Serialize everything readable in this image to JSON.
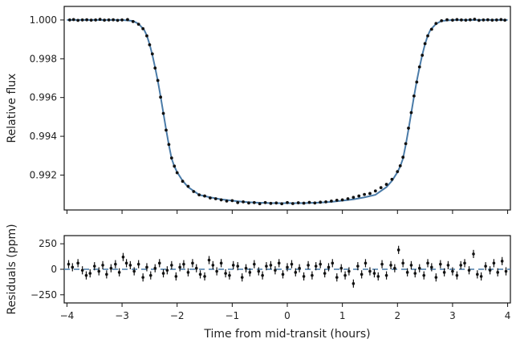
{
  "colors": {
    "model": "#4a7ba8",
    "points": "#111111",
    "axes": "#111111",
    "zero_line": "#4a7ba8"
  },
  "chart_data": [
    {
      "type": "line",
      "panel": "light-curve",
      "ylabel": "Relative flux",
      "xlim": [
        -4.05,
        4.05
      ],
      "ylim": [
        0.9902,
        1.0007
      ],
      "yticks": [
        0.992,
        0.994,
        0.996,
        0.998,
        1.0
      ],
      "ytick_labels": [
        "0.992",
        "0.994",
        "0.996",
        "0.998",
        "1.000"
      ],
      "xticks": [
        -4,
        -3,
        -2,
        -1,
        0,
        1,
        2,
        3,
        4
      ],
      "grid": false,
      "series": [
        {
          "kind": "model-line",
          "x": [
            -4.0,
            -3.0,
            -2.8,
            -2.7,
            -2.6,
            -2.55,
            -2.5,
            -2.45,
            -2.4,
            -2.35,
            -2.3,
            -2.25,
            -2.2,
            -2.15,
            -2.1,
            -2.05,
            -2.0,
            -1.9,
            -1.8,
            -1.6,
            -1.4,
            -1.2,
            -1.0,
            -0.8,
            -0.6,
            -0.4,
            -0.2,
            0.0,
            0.2,
            0.4,
            0.6,
            0.8,
            1.0,
            1.2,
            1.4,
            1.6,
            1.8,
            1.9,
            2.0,
            2.05,
            2.1,
            2.15,
            2.2,
            2.25,
            2.3,
            2.35,
            2.4,
            2.45,
            2.5,
            2.55,
            2.6,
            2.7,
            2.8,
            3.0,
            4.0
          ],
          "y": [
            1.0,
            1.0,
            0.99995,
            0.9998,
            0.9995,
            0.9992,
            0.99875,
            0.9982,
            0.99755,
            0.99685,
            0.99605,
            0.9952,
            0.99435,
            0.99355,
            0.99285,
            0.99245,
            0.99215,
            0.9917,
            0.99138,
            0.99098,
            0.99085,
            0.99075,
            0.99068,
            0.99062,
            0.99058,
            0.99056,
            0.99055,
            0.99055,
            0.99055,
            0.99056,
            0.99058,
            0.99062,
            0.99068,
            0.99075,
            0.99085,
            0.99098,
            0.99138,
            0.9917,
            0.99215,
            0.99245,
            0.99285,
            0.99355,
            0.99435,
            0.9952,
            0.99605,
            0.99685,
            0.99755,
            0.9982,
            0.99875,
            0.9992,
            0.9995,
            0.9998,
            0.99995,
            1.0,
            1.0
          ]
        },
        {
          "kind": "data-points",
          "x": [
            -3.95,
            -3.88,
            -3.8,
            -3.72,
            -3.64,
            -3.56,
            -3.48,
            -3.4,
            -3.32,
            -3.24,
            -3.16,
            -3.08,
            -3.0,
            -2.9,
            -2.8,
            -2.7,
            -2.62,
            -2.55,
            -2.5,
            -2.45,
            -2.4,
            -2.35,
            -2.3,
            -2.25,
            -2.2,
            -2.15,
            -2.1,
            -2.05,
            -2.0,
            -1.9,
            -1.8,
            -1.7,
            -1.6,
            -1.5,
            -1.4,
            -1.3,
            -1.2,
            -1.1,
            -1.0,
            -0.9,
            -0.8,
            -0.7,
            -0.6,
            -0.5,
            -0.4,
            -0.3,
            -0.2,
            -0.1,
            0.0,
            0.1,
            0.2,
            0.3,
            0.4,
            0.5,
            0.6,
            0.7,
            0.8,
            0.9,
            1.0,
            1.1,
            1.2,
            1.3,
            1.4,
            1.5,
            1.6,
            1.7,
            1.8,
            1.9,
            2.0,
            2.05,
            2.1,
            2.15,
            2.2,
            2.25,
            2.3,
            2.35,
            2.4,
            2.45,
            2.5,
            2.55,
            2.62,
            2.7,
            2.8,
            2.9,
            3.0,
            3.08,
            3.16,
            3.24,
            3.32,
            3.4,
            3.48,
            3.56,
            3.64,
            3.72,
            3.8,
            3.88,
            3.95
          ],
          "y": [
            1.0,
            1.00002,
            0.99998,
            1.0,
            1.00001,
            0.99999,
            1.0,
            1.00003,
            0.99999,
            1.0,
            1.00001,
            0.99998,
            1.0,
            1.00002,
            0.99992,
            0.99978,
            0.99955,
            0.99918,
            0.99872,
            0.99825,
            0.99752,
            0.99688,
            0.99602,
            0.99518,
            0.99432,
            0.99358,
            0.99288,
            0.99246,
            0.99212,
            0.99168,
            0.99142,
            0.99115,
            0.99098,
            0.99092,
            0.99082,
            0.99078,
            0.99072,
            0.99066,
            0.99068,
            0.99058,
            0.99062,
            0.99056,
            0.99058,
            0.99052,
            0.99058,
            0.99054,
            0.99056,
            0.99052,
            0.99058,
            0.99053,
            0.99057,
            0.99055,
            0.99059,
            0.99056,
            0.9906,
            0.99062,
            0.99066,
            0.9907,
            0.99072,
            0.99078,
            0.99085,
            0.99092,
            0.991,
            0.99105,
            0.99118,
            0.99135,
            0.99152,
            0.99178,
            0.99218,
            0.99248,
            0.99292,
            0.99362,
            0.99442,
            0.99522,
            0.99608,
            0.9968,
            0.99758,
            0.99818,
            0.99878,
            0.99918,
            0.99952,
            0.99982,
            0.99996,
            1.00001,
            0.99999,
            1.00002,
            1.0,
            0.99999,
            1.00001,
            1.00004,
            0.99998,
            1.0,
            1.00001,
            0.99999,
            1.0,
            1.00002,
            0.99999
          ]
        }
      ]
    },
    {
      "type": "scatter",
      "panel": "residuals",
      "xlabel": "Time from mid-transit (hours)",
      "ylabel": "Residuals (ppm)",
      "xlim": [
        -4.05,
        4.05
      ],
      "ylim": [
        -330,
        330
      ],
      "yticks": [
        -250,
        0,
        250
      ],
      "ytick_labels": [
        "−250",
        "0",
        "250"
      ],
      "xticks": [
        -4,
        -3,
        -2,
        -1,
        0,
        1,
        2,
        3,
        4
      ],
      "xtick_labels": [
        "−4",
        "−3",
        "−2",
        "−1",
        "0",
        "1",
        "2",
        "3",
        "4"
      ],
      "zero_line": 0,
      "error": 40,
      "grid": false,
      "series": [
        {
          "kind": "residuals-with-errorbars",
          "x": [
            -3.97,
            -3.9,
            -3.8,
            -3.72,
            -3.65,
            -3.58,
            -3.5,
            -3.42,
            -3.35,
            -3.28,
            -3.2,
            -3.12,
            -3.05,
            -2.98,
            -2.92,
            -2.85,
            -2.78,
            -2.7,
            -2.62,
            -2.55,
            -2.48,
            -2.4,
            -2.32,
            -2.25,
            -2.18,
            -2.1,
            -2.02,
            -1.95,
            -1.88,
            -1.8,
            -1.72,
            -1.65,
            -1.58,
            -1.5,
            -1.42,
            -1.35,
            -1.28,
            -1.2,
            -1.12,
            -1.05,
            -0.98,
            -0.9,
            -0.82,
            -0.75,
            -0.68,
            -0.6,
            -0.52,
            -0.45,
            -0.38,
            -0.3,
            -0.22,
            -0.15,
            -0.08,
            0.0,
            0.08,
            0.15,
            0.22,
            0.3,
            0.38,
            0.45,
            0.52,
            0.6,
            0.68,
            0.75,
            0.82,
            0.9,
            0.98,
            1.05,
            1.12,
            1.2,
            1.28,
            1.35,
            1.42,
            1.5,
            1.58,
            1.65,
            1.72,
            1.8,
            1.88,
            1.95,
            2.02,
            2.1,
            2.18,
            2.25,
            2.32,
            2.4,
            2.48,
            2.55,
            2.62,
            2.7,
            2.78,
            2.85,
            2.92,
            3.0,
            3.08,
            3.15,
            3.22,
            3.3,
            3.38,
            3.45,
            3.52,
            3.6,
            3.68,
            3.75,
            3.82,
            3.9,
            3.97
          ],
          "y": [
            50,
            20,
            60,
            -10,
            -60,
            -40,
            30,
            -20,
            40,
            -50,
            10,
            50,
            -30,
            120,
            60,
            40,
            -20,
            50,
            -80,
            20,
            -60,
            10,
            60,
            -40,
            -10,
            40,
            -70,
            20,
            50,
            -30,
            60,
            10,
            -50,
            -70,
            90,
            40,
            -20,
            60,
            -40,
            -60,
            40,
            30,
            -80,
            10,
            -30,
            50,
            -20,
            -60,
            30,
            40,
            -10,
            60,
            -50,
            20,
            50,
            -30,
            10,
            -70,
            40,
            -60,
            30,
            50,
            -40,
            20,
            60,
            -80,
            10,
            -60,
            -20,
            -140,
            30,
            -50,
            60,
            -20,
            -40,
            -70,
            50,
            -60,
            40,
            10,
            190,
            60,
            -30,
            40,
            -40,
            10,
            -60,
            60,
            20,
            -80,
            50,
            -30,
            40,
            -20,
            -60,
            40,
            60,
            -10,
            150,
            -50,
            -70,
            30,
            -10,
            60,
            -30,
            80,
            -20
          ]
        }
      ]
    }
  ]
}
